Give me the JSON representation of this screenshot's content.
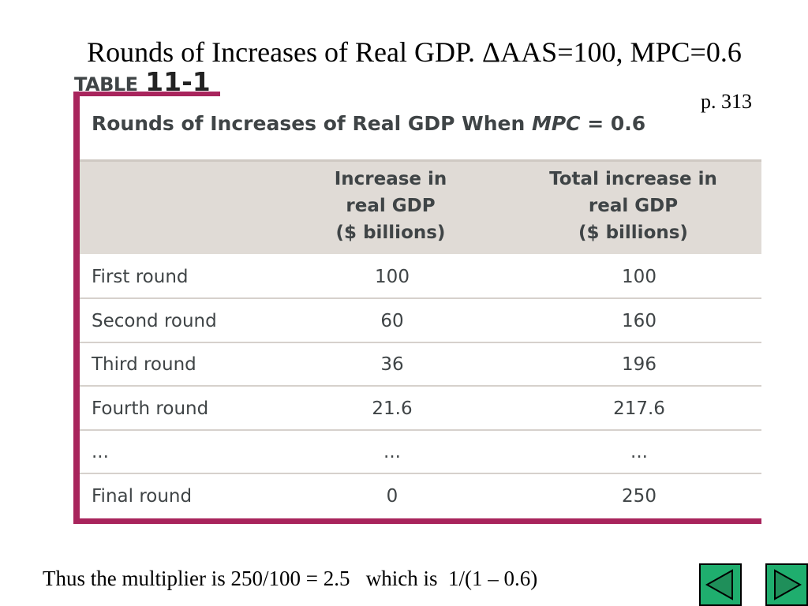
{
  "slide": {
    "title": "Rounds of Increases of Real GDP. ΔAAS=100, MPC=0.6",
    "page_ref": "p. 313",
    "summary": "Thus the multiplier is 250/100 = 2.5   which is  1/(1 – 0.6)"
  },
  "table": {
    "label_word": "TABLE",
    "label_number": "11-1",
    "caption_prefix": "Rounds of Increases of Real GDP When ",
    "caption_italic": "MPC",
    "caption_suffix": " = 0.6",
    "header_1": "Increase in\nreal GDP\n($ billions)",
    "header_2": "Total increase in\nreal GDP\n($ billions)",
    "rows": [
      {
        "label": "First round",
        "increase": "100",
        "total": "100"
      },
      {
        "label": "Second round",
        "increase": "60",
        "total": "160"
      },
      {
        "label": "Third round",
        "increase": "36",
        "total": "196"
      },
      {
        "label": "Fourth round",
        "increase": "21.6",
        "total": "217.6"
      },
      {
        "label": "...",
        "increase": "...",
        "total": "..."
      },
      {
        "label": "Final round",
        "increase": "0",
        "total": "250"
      }
    ]
  },
  "nav": {
    "prev_icon": "triangle-left-icon",
    "next_icon": "triangle-right-icon",
    "button_color": "#1fae6e",
    "accent_color": "#a8245c"
  }
}
